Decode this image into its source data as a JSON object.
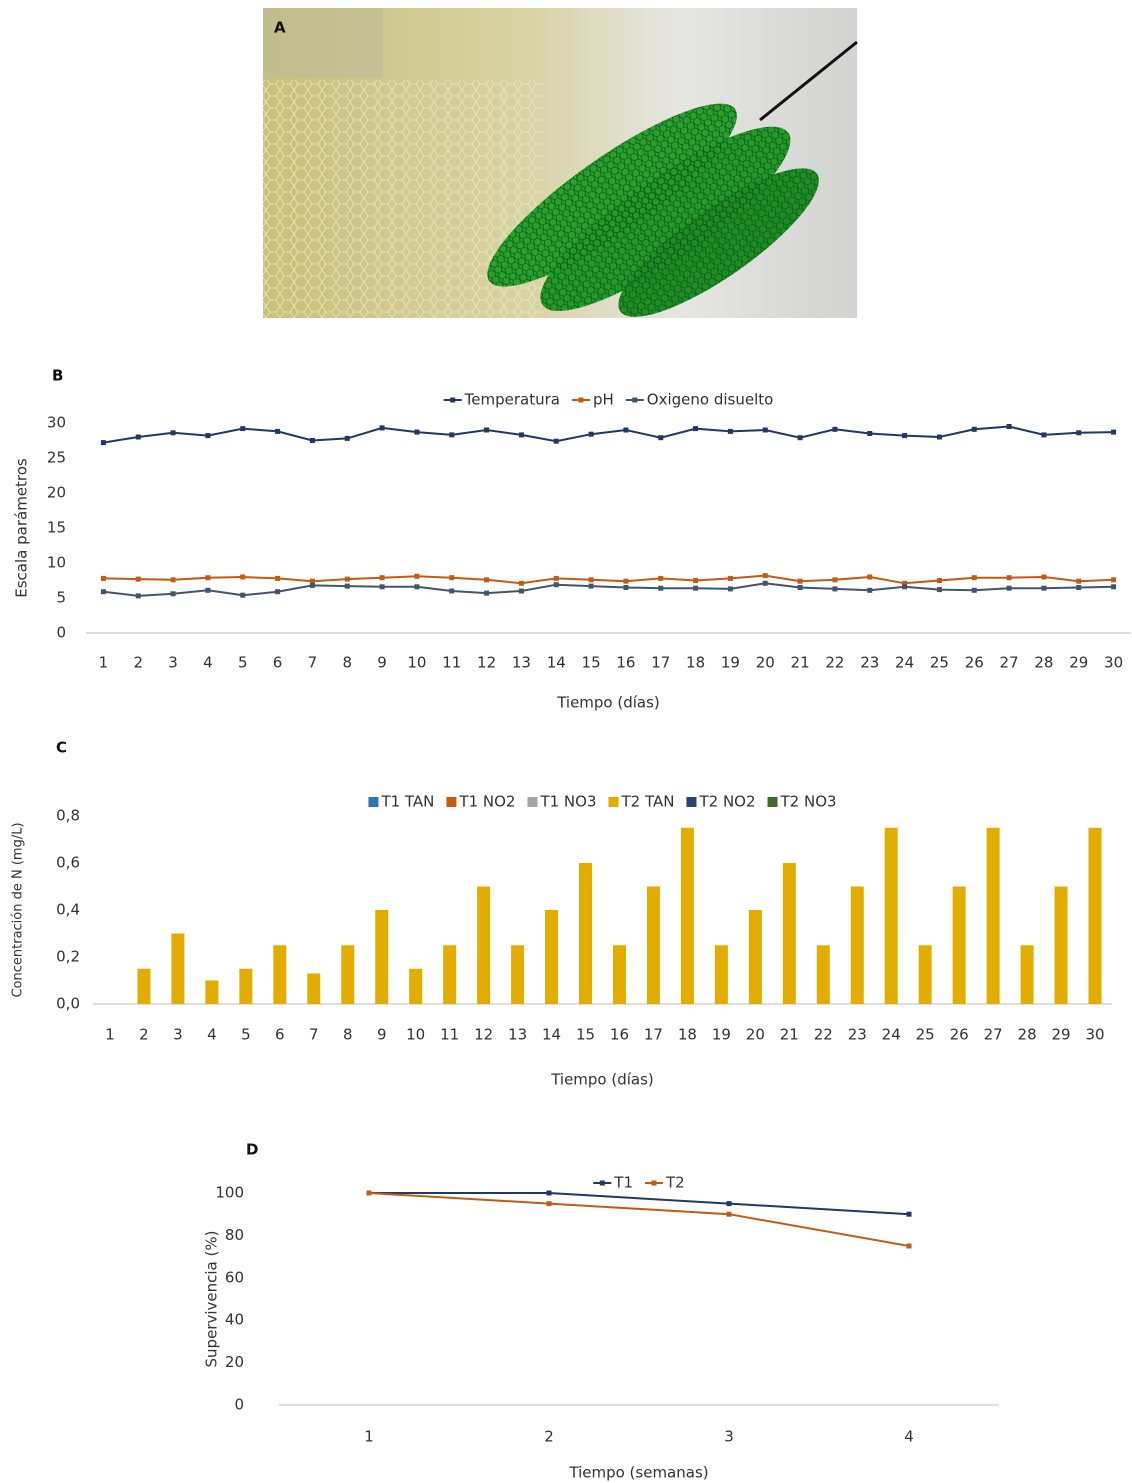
{
  "image": {
    "label": "A"
  },
  "chart_data": [
    {
      "type": "line",
      "label": "B",
      "ylabel": "Escala parámetros",
      "xlabel": "Tiempo (días)",
      "categories": [
        "1",
        "2",
        "3",
        "4",
        "5",
        "6",
        "7",
        "8",
        "9",
        "10",
        "11",
        "12",
        "13",
        "14",
        "15",
        "16",
        "17",
        "18",
        "19",
        "20",
        "21",
        "22",
        "23",
        "24",
        "25",
        "26",
        "27",
        "28",
        "29",
        "30"
      ],
      "series": [
        {
          "name": "Temperatura",
          "color": "#203864",
          "values": [
            27.2,
            28,
            28.6,
            28.2,
            29.2,
            28.8,
            27.5,
            27.8,
            29.3,
            28.7,
            28.3,
            29,
            28.3,
            27.4,
            28.4,
            29,
            27.9,
            29.2,
            28.8,
            29,
            27.9,
            29.1,
            28.5,
            28.2,
            28,
            29.1,
            29.5,
            28.3,
            28.6,
            28.7
          ]
        },
        {
          "name": "pH",
          "color": "#c55a11",
          "values": [
            7.8,
            7.7,
            7.6,
            7.9,
            8.0,
            7.8,
            7.4,
            7.7,
            7.9,
            8.1,
            7.9,
            7.6,
            7.1,
            7.8,
            7.6,
            7.4,
            7.8,
            7.5,
            7.8,
            8.2,
            7.4,
            7.6,
            8.0,
            7.1,
            7.5,
            7.9,
            7.9,
            8.0,
            7.4,
            7.6
          ]
        },
        {
          "name": "Oxigeno disuelto",
          "color": "#44546a",
          "values": [
            5.9,
            5.3,
            5.6,
            6.1,
            5.4,
            5.9,
            6.8,
            6.7,
            6.6,
            6.6,
            6.0,
            5.7,
            6.0,
            6.9,
            6.7,
            6.5,
            6.4,
            6.4,
            6.3,
            7.1,
            6.5,
            6.3,
            6.1,
            6.6,
            6.2,
            6.1,
            6.4,
            6.4,
            6.5,
            6.6
          ]
        }
      ],
      "ylim": [
        0,
        30
      ],
      "yticks": [
        0,
        5,
        10,
        15,
        20,
        25,
        30
      ],
      "legend": "top"
    },
    {
      "type": "bar",
      "label": "C",
      "ylabel": "Concentración de N (mg/L)",
      "xlabel": "Tiempo (días)",
      "categories": [
        "1",
        "2",
        "3",
        "4",
        "5",
        "6",
        "7",
        "8",
        "9",
        "10",
        "11",
        "12",
        "13",
        "14",
        "15",
        "16",
        "17",
        "18",
        "19",
        "20",
        "21",
        "22",
        "23",
        "24",
        "25",
        "26",
        "27",
        "28",
        "29",
        "30"
      ],
      "series": [
        {
          "name": "T1 TAN",
          "color": "#2e75b6",
          "values": [
            0,
            0,
            0,
            0,
            0,
            0,
            0,
            0,
            0,
            0,
            0,
            0,
            0,
            0,
            0,
            0,
            0,
            0,
            0,
            0,
            0,
            0,
            0,
            0,
            0,
            0,
            0,
            0,
            0,
            0
          ]
        },
        {
          "name": "T1 NO2",
          "color": "#c55a11",
          "values": [
            0,
            0,
            0,
            0,
            0,
            0,
            0,
            0,
            0,
            0,
            0,
            0,
            0,
            0,
            0,
            0,
            0,
            0,
            0,
            0,
            0,
            0,
            0,
            0,
            0,
            0,
            0,
            0,
            0,
            0
          ]
        },
        {
          "name": "T1 NO3",
          "color": "#a5a5a5",
          "values": [
            0,
            0,
            0,
            0,
            0,
            0,
            0,
            0,
            0,
            0,
            0,
            0,
            0,
            0,
            0,
            0,
            0,
            0,
            0,
            0,
            0,
            0,
            0,
            0,
            0,
            0,
            0,
            0,
            0,
            0
          ]
        },
        {
          "name": "T2 TAN",
          "color": "#e3ad00",
          "values": [
            0,
            0.15,
            0.3,
            0.1,
            0.15,
            0.25,
            0.13,
            0.25,
            0.4,
            0.15,
            0.25,
            0.5,
            0.25,
            0.4,
            0.6,
            0.25,
            0.5,
            0.75,
            0.25,
            0.4,
            0.6,
            0.25,
            0.5,
            0.75,
            0.25,
            0.5,
            0.75,
            0.25,
            0.5,
            0.75
          ]
        },
        {
          "name": "T2 NO2",
          "color": "#264478",
          "values": [
            0,
            0,
            0,
            0,
            0,
            0,
            0,
            0,
            0,
            0,
            0,
            0,
            0,
            0,
            0,
            0,
            0,
            0,
            0,
            0,
            0,
            0,
            0,
            0,
            0,
            0,
            0,
            0,
            0,
            0
          ]
        },
        {
          "name": "T2 NO3",
          "color": "#43682b",
          "values": [
            0,
            0,
            0,
            0,
            0,
            0,
            0,
            0,
            0,
            0,
            0,
            0,
            0,
            0,
            0,
            0,
            0,
            0,
            0,
            0,
            0,
            0,
            0,
            0,
            0,
            0,
            0,
            0,
            0,
            0
          ]
        }
      ],
      "ylim": [
        0,
        0.8
      ],
      "yticks": [
        {
          "value": 0,
          "label": "0,0"
        },
        {
          "value": 0.2,
          "label": "0,2"
        },
        {
          "value": 0.4,
          "label": "0,4"
        },
        {
          "value": 0.6,
          "label": "0,6"
        },
        {
          "value": 0.8,
          "label": "0,8"
        }
      ],
      "legend": "top"
    },
    {
      "type": "line",
      "label": "D",
      "ylabel": "Supervivencia (%)",
      "xlabel": "Tiempo (semanas)",
      "categories": [
        "1",
        "2",
        "3",
        "4"
      ],
      "series": [
        {
          "name": "T1",
          "color": "#203864",
          "values": [
            100,
            100,
            95,
            90
          ]
        },
        {
          "name": "T2",
          "color": "#c55a11",
          "values": [
            100,
            95,
            90,
            75
          ]
        }
      ],
      "ylim": [
        0,
        100
      ],
      "yticks": [
        0,
        20,
        40,
        60,
        80,
        100
      ],
      "legend": "top"
    }
  ]
}
